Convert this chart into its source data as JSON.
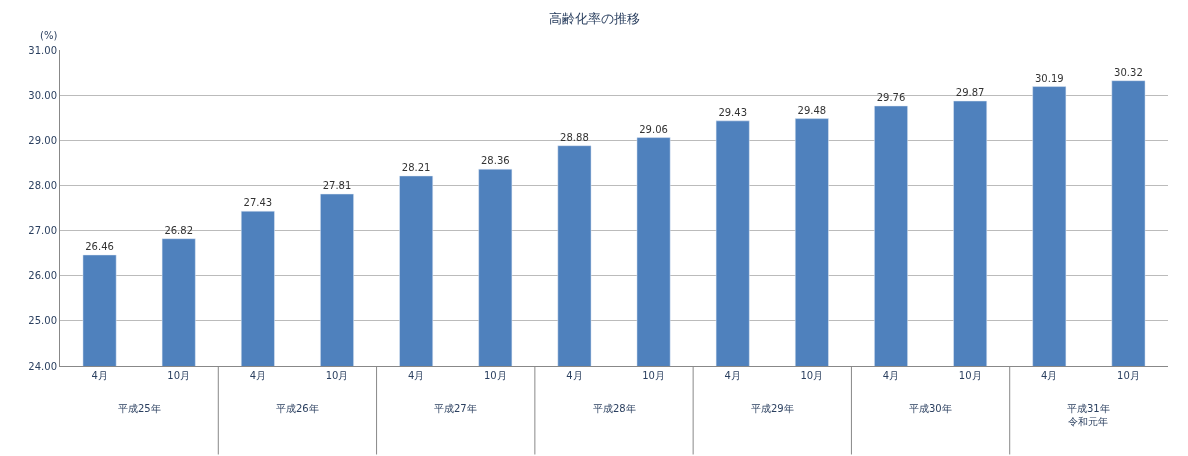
{
  "chart_data": {
    "type": "bar",
    "title": "高齢化率の推移",
    "ylabel": "(%)",
    "categories": [
      "4月",
      "10月",
      "4月",
      "10月",
      "4月",
      "10月",
      "4月",
      "10月",
      "4月",
      "10月",
      "4月",
      "10月",
      "4月",
      "10月"
    ],
    "values": [
      26.46,
      26.82,
      27.43,
      27.81,
      28.21,
      28.36,
      28.88,
      29.06,
      29.43,
      29.48,
      29.76,
      29.87,
      30.19,
      30.32
    ],
    "color": "#4f81bd",
    "ylim": [
      24,
      31
    ],
    "yticks": [
      {
        "value": 24,
        "label": "24.00"
      },
      {
        "value": 25,
        "label": "25.00"
      },
      {
        "value": 26,
        "label": "26.00"
      },
      {
        "value": 27,
        "label": "27.00"
      },
      {
        "value": 28,
        "label": "28.00"
      },
      {
        "value": 29,
        "label": "29.00"
      },
      {
        "value": 30,
        "label": "30.00"
      },
      {
        "value": 31,
        "label": "31.00"
      }
    ],
    "grid": "y",
    "data_labels": true,
    "annotations": [
      "平成25年",
      "平成26年",
      "平成27年",
      "平成28年",
      "平成29年",
      "平成30年",
      "平成31年令和元年"
    ]
  }
}
